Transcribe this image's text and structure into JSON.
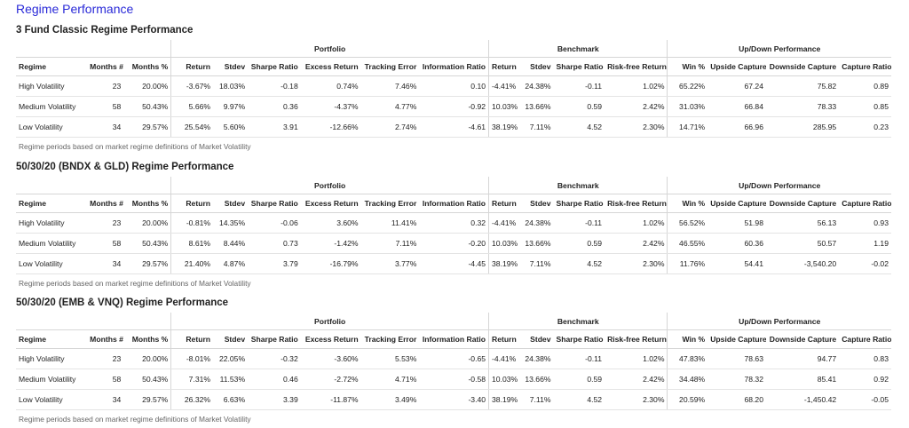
{
  "page_title": "Regime Performance",
  "group_labels": {
    "portfolio": "Portfolio",
    "benchmark": "Benchmark",
    "updown": "Up/Down Performance"
  },
  "columns": [
    "Regime",
    "Months #",
    "Months %",
    "Return",
    "Stdev",
    "Sharpe Ratio",
    "Excess Return",
    "Tracking Error",
    "Information Ratio",
    "Return",
    "Stdev",
    "Sharpe Ratio",
    "Risk-free Return",
    "Win %",
    "Upside Capture",
    "Downside Capture",
    "Capture Ratio"
  ],
  "sections": [
    {
      "title": "3 Fund Classic Regime Performance",
      "rows": [
        [
          "High Volatility",
          "23",
          "20.00%",
          "-3.67%",
          "18.03%",
          "-0.18",
          "0.74%",
          "7.46%",
          "0.10",
          "-4.41%",
          "24.38%",
          "-0.11",
          "1.02%",
          "65.22%",
          "67.24",
          "75.82",
          "0.89"
        ],
        [
          "Medium Volatility",
          "58",
          "50.43%",
          "5.66%",
          "9.97%",
          "0.36",
          "-4.37%",
          "4.77%",
          "-0.92",
          "10.03%",
          "13.66%",
          "0.59",
          "2.42%",
          "31.03%",
          "66.84",
          "78.33",
          "0.85"
        ],
        [
          "Low Volatility",
          "34",
          "29.57%",
          "25.54%",
          "5.60%",
          "3.91",
          "-12.66%",
          "2.74%",
          "-4.61",
          "38.19%",
          "7.11%",
          "4.52",
          "2.30%",
          "14.71%",
          "66.96",
          "285.95",
          "0.23"
        ]
      ],
      "note": "Regime periods based on market regime definitions of Market Volatility"
    },
    {
      "title": "50/30/20 (BNDX & GLD) Regime Performance",
      "rows": [
        [
          "High Volatility",
          "23",
          "20.00%",
          "-0.81%",
          "14.35%",
          "-0.06",
          "3.60%",
          "11.41%",
          "0.32",
          "-4.41%",
          "24.38%",
          "-0.11",
          "1.02%",
          "56.52%",
          "51.98",
          "56.13",
          "0.93"
        ],
        [
          "Medium Volatility",
          "58",
          "50.43%",
          "8.61%",
          "8.44%",
          "0.73",
          "-1.42%",
          "7.11%",
          "-0.20",
          "10.03%",
          "13.66%",
          "0.59",
          "2.42%",
          "46.55%",
          "60.36",
          "50.57",
          "1.19"
        ],
        [
          "Low Volatility",
          "34",
          "29.57%",
          "21.40%",
          "4.87%",
          "3.79",
          "-16.79%",
          "3.77%",
          "-4.45",
          "38.19%",
          "7.11%",
          "4.52",
          "2.30%",
          "11.76%",
          "54.41",
          "-3,540.20",
          "-0.02"
        ]
      ],
      "note": "Regime periods based on market regime definitions of Market Volatility"
    },
    {
      "title": "50/30/20 (EMB & VNQ) Regime Performance",
      "rows": [
        [
          "High Volatility",
          "23",
          "20.00%",
          "-8.01%",
          "22.05%",
          "-0.32",
          "-3.60%",
          "5.53%",
          "-0.65",
          "-4.41%",
          "24.38%",
          "-0.11",
          "1.02%",
          "47.83%",
          "78.63",
          "94.77",
          "0.83"
        ],
        [
          "Medium Volatility",
          "58",
          "50.43%",
          "7.31%",
          "11.53%",
          "0.46",
          "-2.72%",
          "4.71%",
          "-0.58",
          "10.03%",
          "13.66%",
          "0.59",
          "2.42%",
          "34.48%",
          "78.32",
          "85.41",
          "0.92"
        ],
        [
          "Low Volatility",
          "34",
          "29.57%",
          "26.32%",
          "6.63%",
          "3.39",
          "-11.87%",
          "3.49%",
          "-3.40",
          "38.19%",
          "7.11%",
          "4.52",
          "2.30%",
          "20.59%",
          "68.20",
          "-1,450.42",
          "-0.05"
        ]
      ],
      "note": "Regime periods based on market regime definitions of Market Volatility"
    }
  ]
}
